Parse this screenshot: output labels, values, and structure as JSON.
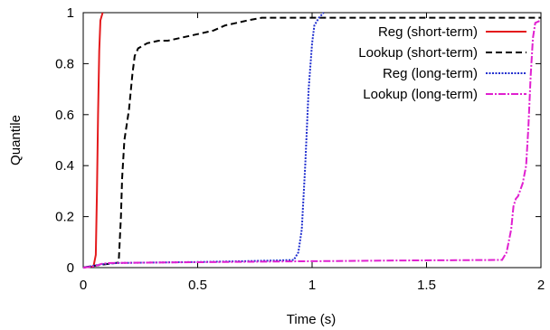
{
  "chart_data": {
    "type": "line",
    "title": "",
    "xlabel": "Time (s)",
    "ylabel": "Quantile",
    "xlim": [
      0,
      2
    ],
    "ylim": [
      0,
      1
    ],
    "x_ticks": [
      0,
      0.5,
      1,
      1.5,
      2
    ],
    "x_tick_labels": [
      "0",
      "0.5",
      "1",
      "1.5",
      "2"
    ],
    "y_ticks": [
      0,
      0.2,
      0.4,
      0.6,
      0.8,
      1
    ],
    "y_tick_labels": [
      "0",
      "0.2",
      "0.4",
      "0.6",
      "0.8",
      "1"
    ],
    "grid": false,
    "legend_position": "top-right",
    "series": [
      {
        "name": "Reg (short-term)",
        "color": "#e41a1c",
        "dash": "solid",
        "points": [
          [
            0,
            0.0
          ],
          [
            0.045,
            0.005
          ],
          [
            0.055,
            0.05
          ],
          [
            0.06,
            0.3
          ],
          [
            0.065,
            0.6
          ],
          [
            0.07,
            0.85
          ],
          [
            0.075,
            0.97
          ],
          [
            0.085,
            1.0
          ]
        ]
      },
      {
        "name": "Lookup (short-term)",
        "color": "#000000",
        "dash": "dashed",
        "points": [
          [
            0,
            0.0
          ],
          [
            0.03,
            0.005
          ],
          [
            0.07,
            0.01
          ],
          [
            0.155,
            0.02
          ],
          [
            0.165,
            0.2
          ],
          [
            0.17,
            0.35
          ],
          [
            0.18,
            0.5
          ],
          [
            0.2,
            0.62
          ],
          [
            0.215,
            0.76
          ],
          [
            0.225,
            0.83
          ],
          [
            0.24,
            0.86
          ],
          [
            0.28,
            0.88
          ],
          [
            0.33,
            0.89
          ],
          [
            0.37,
            0.89
          ],
          [
            0.42,
            0.9
          ],
          [
            0.47,
            0.91
          ],
          [
            0.52,
            0.92
          ],
          [
            0.57,
            0.93
          ],
          [
            0.62,
            0.95
          ],
          [
            0.67,
            0.96
          ],
          [
            0.72,
            0.97
          ],
          [
            0.78,
            0.98
          ],
          [
            2.0,
            0.98
          ]
        ]
      },
      {
        "name": "Reg (long-term)",
        "color": "#1f2ecf",
        "dash": "dotted",
        "points": [
          [
            0,
            0.0
          ],
          [
            0.03,
            0.005
          ],
          [
            0.06,
            0.01
          ],
          [
            0.1,
            0.015
          ],
          [
            0.15,
            0.018
          ],
          [
            0.3,
            0.02
          ],
          [
            0.5,
            0.022
          ],
          [
            0.7,
            0.025
          ],
          [
            0.85,
            0.028
          ],
          [
            0.92,
            0.03
          ],
          [
            0.94,
            0.06
          ],
          [
            0.955,
            0.15
          ],
          [
            0.97,
            0.4
          ],
          [
            0.985,
            0.7
          ],
          [
            1.0,
            0.88
          ],
          [
            1.01,
            0.95
          ],
          [
            1.03,
            0.98
          ],
          [
            1.05,
            1.0
          ]
        ]
      },
      {
        "name": "Lookup (long-term)",
        "color": "#e020d0",
        "dash": "dashdot",
        "points": [
          [
            0,
            0.0
          ],
          [
            0.05,
            0.005
          ],
          [
            0.08,
            0.015
          ],
          [
            0.12,
            0.018
          ],
          [
            0.3,
            0.02
          ],
          [
            0.6,
            0.022
          ],
          [
            1.0,
            0.025
          ],
          [
            1.4,
            0.028
          ],
          [
            1.83,
            0.03
          ],
          [
            1.85,
            0.06
          ],
          [
            1.87,
            0.15
          ],
          [
            1.88,
            0.24
          ],
          [
            1.89,
            0.27
          ],
          [
            1.9,
            0.28
          ],
          [
            1.92,
            0.33
          ],
          [
            1.935,
            0.4
          ],
          [
            1.945,
            0.55
          ],
          [
            1.955,
            0.75
          ],
          [
            1.965,
            0.9
          ],
          [
            1.975,
            0.96
          ],
          [
            2.0,
            0.97
          ]
        ]
      }
    ]
  }
}
